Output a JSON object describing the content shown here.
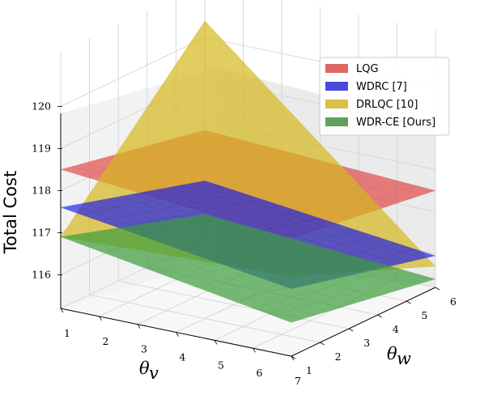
{
  "chart_data": {
    "type": "surface3d",
    "xlabel": "θv",
    "ylabel": "θw",
    "zlabel": "Total Cost",
    "x_ticks": [
      "1",
      "2",
      "3",
      "4",
      "5",
      "6",
      "7"
    ],
    "y_ticks": [
      "1",
      "2",
      "3",
      "4",
      "5",
      "6"
    ],
    "z_ticks": [
      "116",
      "117",
      "118",
      "119",
      "120"
    ],
    "xlim": [
      1,
      7
    ],
    "ylim": [
      1,
      6
    ],
    "zlim": [
      115.2,
      121.3
    ],
    "grid": true,
    "legend_position": "top-right",
    "legend": [
      {
        "label": "LQG",
        "color": "#e06666"
      },
      {
        "label": "WDRC [7]",
        "color": "#4a4ad9"
      },
      {
        "label": "DRLQC [10]",
        "color": "#d9c04a"
      },
      {
        "label": "WDR-CE [Ours]",
        "color": "#5fa05f"
      }
    ],
    "series": [
      {
        "name": "LQG",
        "color": "#e03030",
        "opacity": 0.6,
        "corners": {
          "x1_y1": 118.5,
          "x1_y6": 117.8,
          "x7_y1": 118.0,
          "x7_y6": 117.5
        }
      },
      {
        "name": "WDRC [7]",
        "color": "#1515ee",
        "opacity": 0.65,
        "corners": {
          "x1_y1": 117.6,
          "x1_y6": 116.6,
          "x7_y1": 116.8,
          "x7_y6": 115.95
        }
      },
      {
        "name": "DRLQC [10]",
        "color": "#d4b81c",
        "opacity": 0.7,
        "corners": {
          "x1_y1": 116.9,
          "x1_y6": 120.4,
          "x7_y1": 117.1,
          "x7_y6": 115.7
        }
      },
      {
        "name": "WDR-CE [Ours]",
        "color": "#3c9c3c",
        "opacity": 0.7,
        "corners": {
          "x1_y1": 116.9,
          "x1_y6": 115.8,
          "x7_y1": 116.0,
          "x7_y6": 115.4
        }
      }
    ]
  }
}
